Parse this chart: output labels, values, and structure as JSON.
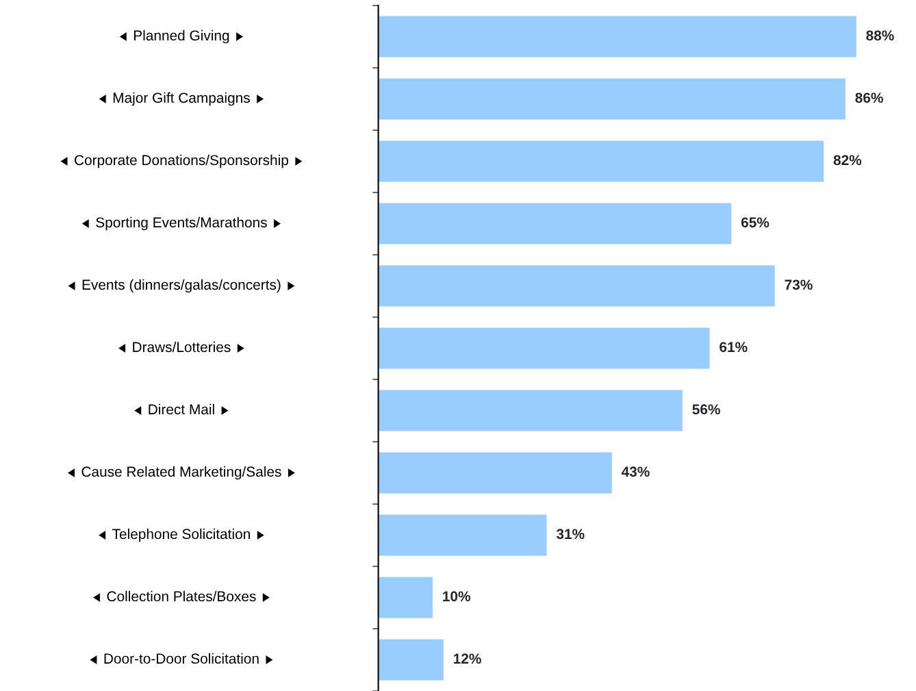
{
  "chart_data": {
    "type": "bar",
    "orientation": "horizontal",
    "categories": [
      "Planned Giving",
      "Major Gift Campaigns",
      "Corporate Donations/Sponsorship",
      "Sporting Events/Marathons",
      "Events (dinners/galas/concerts)",
      "Draws/Lotteries",
      "Direct Mail",
      "Cause Related Marketing/Sales",
      "Telephone Solicitation",
      "Collection Plates/Boxes",
      "Door-to-Door Solicitation"
    ],
    "values": [
      88,
      86,
      82,
      65,
      73,
      61,
      56,
      43,
      31,
      10,
      12
    ],
    "value_labels": [
      "88%",
      "86%",
      "82%",
      "65%",
      "73%",
      "61%",
      "56%",
      "43%",
      "31%",
      "10%",
      "12%"
    ],
    "color": "#99ccff",
    "grid": false,
    "legend": false
  }
}
